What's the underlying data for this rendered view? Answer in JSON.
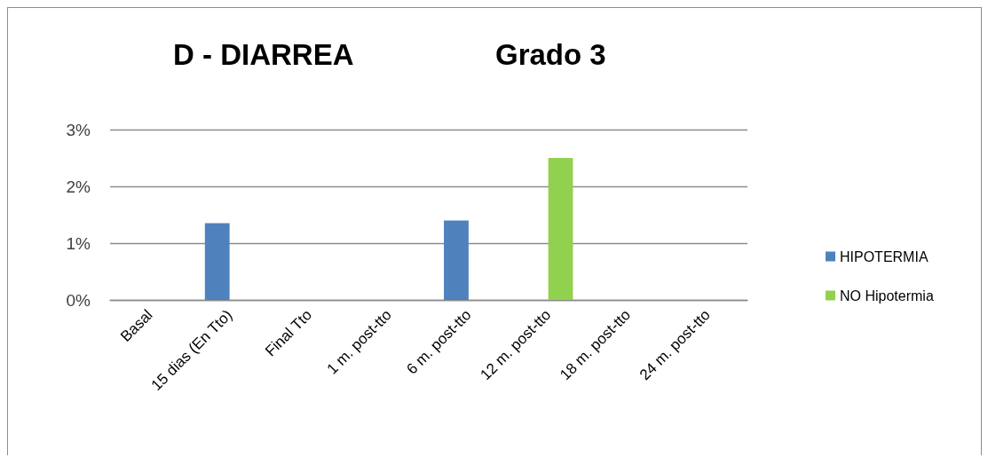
{
  "chart_data": {
    "type": "bar",
    "title": "D - DIARREA",
    "subtitle": "Grado 3",
    "categories": [
      "Basal",
      "15 dias (En Tto)",
      "Final Tto",
      "1 m. post-tto",
      "6 m. post-tto",
      "12 m. post-tto",
      "18 m. post-tto",
      "24 m. post-tto"
    ],
    "series": [
      {
        "name": "HIPOTERMIA",
        "color": "#4f81bd",
        "values": [
          0,
          1.35,
          0,
          0,
          1.4,
          0,
          0,
          0
        ]
      },
      {
        "name": "NO Hipotermia",
        "color": "#92d050",
        "values": [
          0,
          0,
          0,
          0,
          0,
          2.5,
          0,
          0
        ]
      }
    ],
    "ylim": [
      0,
      3
    ],
    "yticks": [
      {
        "value": 0,
        "label": "0%"
      },
      {
        "value": 1,
        "label": "1%"
      },
      {
        "value": 2,
        "label": "2%"
      },
      {
        "value": 3,
        "label": "3%"
      }
    ],
    "grid": "y",
    "legend": "right"
  }
}
